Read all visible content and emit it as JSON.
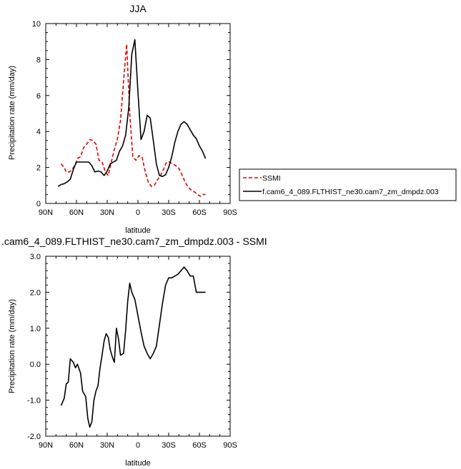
{
  "chart_data": [
    {
      "type": "line",
      "title": "JJA",
      "xlabel": "latitude",
      "ylabel": "Precipitation rate (mm/day)",
      "xlim": [
        90,
        -90
      ],
      "ylim": [
        0,
        10
      ],
      "xticks": [
        90,
        60,
        30,
        0,
        -30,
        -60,
        -90
      ],
      "xtick_labels": [
        "90N",
        "60N",
        "30N",
        "0",
        "30S",
        "60S",
        "90S"
      ],
      "yticks": [
        0,
        2,
        4,
        6,
        8,
        10
      ],
      "ytick_labels": [
        "0",
        "2",
        "4",
        "6",
        "8",
        "10"
      ],
      "legend": "right",
      "series": [
        {
          "name": "SSMI",
          "color": "#e00000",
          "dash": "dashed",
          "x": [
            75,
            72,
            70,
            67,
            64,
            61,
            59,
            56,
            53,
            50,
            47,
            44,
            41,
            38,
            35,
            32,
            29,
            26,
            23,
            20,
            17,
            14,
            11,
            8,
            5,
            2,
            -1,
            -4,
            -7,
            -10,
            -13,
            -16,
            -19,
            -22,
            -25,
            -28,
            -31,
            -34,
            -37,
            -40,
            -43,
            -46,
            -49,
            -52,
            -55,
            -58,
            -61,
            -64,
            -66
          ],
          "y": [
            2.2,
            2.0,
            1.75,
            1.75,
            1.9,
            2.2,
            2.5,
            2.6,
            3.1,
            3.3,
            3.55,
            3.5,
            3.3,
            2.4,
            2.3,
            1.8,
            1.55,
            2.3,
            3.0,
            3.6,
            4.6,
            6.8,
            8.85,
            5.0,
            2.6,
            2.4,
            2.65,
            2.6,
            1.8,
            1.2,
            0.95,
            1.0,
            1.3,
            1.55,
            1.9,
            2.3,
            2.3,
            2.2,
            2.1,
            1.95,
            1.6,
            1.2,
            0.9,
            0.75,
            0.65,
            0.5,
            0.4,
            0.5,
            0.5
          ]
        },
        {
          "name": "f.cam6_4_089.FLTHIST_ne30.cam7_zm_dmpdz.003",
          "color": "#000000",
          "dash": "solid",
          "x": [
            78,
            75,
            72,
            69,
            66,
            63,
            60,
            57,
            54,
            51,
            48,
            45,
            42,
            39,
            36,
            33,
            30,
            27,
            24,
            21,
            18,
            15,
            12,
            9,
            6,
            3,
            0,
            -3,
            -6,
            -9,
            -12,
            -15,
            -18,
            -21,
            -24,
            -27,
            -30,
            -33,
            -36,
            -39,
            -42,
            -45,
            -48,
            -51,
            -54,
            -57,
            -60,
            -63,
            -66
          ],
          "y": [
            0.95,
            1.05,
            1.1,
            1.2,
            1.35,
            1.9,
            2.3,
            2.3,
            2.3,
            2.3,
            2.3,
            2.1,
            1.75,
            1.8,
            1.75,
            1.55,
            1.8,
            2.2,
            2.3,
            2.4,
            2.9,
            3.2,
            3.8,
            5.3,
            8.3,
            9.1,
            6.2,
            3.55,
            4.0,
            4.9,
            4.75,
            3.5,
            2.2,
            1.55,
            1.5,
            1.6,
            2.0,
            2.6,
            3.4,
            4.0,
            4.4,
            4.55,
            4.4,
            4.1,
            3.8,
            3.6,
            3.2,
            2.9,
            2.5
          ]
        }
      ]
    },
    {
      "type": "line",
      "title": ".cam6_4_089.FLTHIST_ne30.cam7_zm_dmpdz.003 - SSMI",
      "xlabel": "latitude",
      "ylabel": "Precipitation rate (mm/day)",
      "xlim": [
        90,
        -90
      ],
      "ylim": [
        -2,
        3
      ],
      "xticks": [
        90,
        60,
        30,
        0,
        -30,
        -60,
        -90
      ],
      "xtick_labels": [
        "90N",
        "60N",
        "30N",
        "0",
        "30S",
        "60S",
        "90S"
      ],
      "yticks": [
        -2,
        -1,
        0,
        1,
        2,
        3
      ],
      "ytick_labels": [
        "-2.0",
        "-1.0",
        "0.0",
        "1.0",
        "2.0",
        "3.0"
      ],
      "series": [
        {
          "color": "#000000",
          "dash": "solid",
          "x": [
            75,
            72,
            70,
            68,
            66,
            63,
            61,
            59,
            56,
            54,
            51,
            49,
            47,
            45,
            43,
            41,
            39,
            37,
            35,
            33,
            31,
            29,
            27,
            25,
            23,
            21,
            19,
            17,
            14,
            12,
            10,
            8,
            6,
            3,
            0,
            -3,
            -6,
            -9,
            -12,
            -15,
            -18,
            -21,
            -24,
            -27,
            -30,
            -33,
            -36,
            -39,
            -42,
            -45,
            -48,
            -51,
            -54,
            -57,
            -60,
            -63,
            -66
          ],
          "y": [
            -1.15,
            -0.95,
            -0.55,
            -0.5,
            0.15,
            0.05,
            -0.1,
            0.0,
            -0.25,
            -0.75,
            -0.9,
            -1.5,
            -1.75,
            -1.6,
            -1.0,
            -0.75,
            -0.6,
            -0.1,
            0.25,
            0.65,
            0.85,
            0.75,
            0.4,
            0.2,
            0.05,
            1.0,
            0.7,
            0.25,
            0.3,
            0.95,
            1.75,
            2.25,
            2.0,
            1.8,
            1.35,
            0.9,
            0.5,
            0.3,
            0.15,
            0.3,
            0.5,
            1.1,
            1.7,
            2.2,
            2.4,
            2.4,
            2.45,
            2.5,
            2.6,
            2.7,
            2.6,
            2.45,
            2.45,
            2.0,
            2.0,
            2.0,
            2.0
          ]
        }
      ]
    }
  ]
}
